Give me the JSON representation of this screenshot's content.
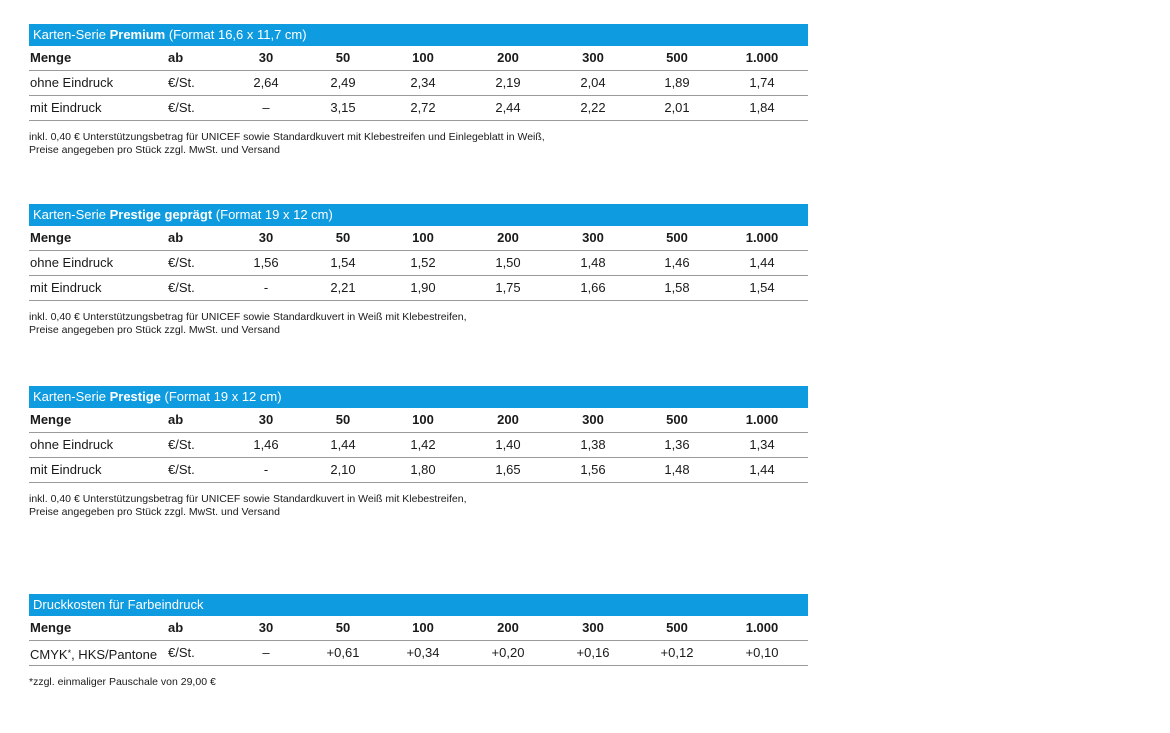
{
  "colors": {
    "accent": "#0f9be0",
    "rule": "#9a9a9a"
  },
  "tables": [
    {
      "title_prefix": "Karten-Serie ",
      "title_bold": "Premium",
      "title_suffix": " (Format 16,6 x 11,7 cm)",
      "header": [
        "Menge",
        "ab",
        "30",
        "50",
        "100",
        "200",
        "300",
        "500",
        "1.000"
      ],
      "rows": [
        [
          "ohne Eindruck",
          "€/St.",
          "2,64",
          "2,49",
          "2,34",
          "2,19",
          "2,04",
          "1,89",
          "1,74"
        ],
        [
          "mit Eindruck",
          "€/St.",
          "–",
          "3,15",
          "2,72",
          "2,44",
          "2,22",
          "2,01",
          "1,84"
        ]
      ],
      "note_lines": [
        "inkl. 0,40 € Unterstützungsbetrag für UNICEF sowie Standardkuvert mit Klebestreifen und Einlegeblatt in Weiß,",
        "Preise angegeben pro Stück zzgl. MwSt. und Versand"
      ]
    },
    {
      "title_prefix": "Karten-Serie ",
      "title_bold": "Prestige geprägt",
      "title_suffix": " (Format 19 x 12 cm)",
      "header": [
        "Menge",
        "ab",
        "30",
        "50",
        "100",
        "200",
        "300",
        "500",
        "1.000"
      ],
      "rows": [
        [
          "ohne Eindruck",
          "€/St.",
          "1,56",
          "1,54",
          "1,52",
          "1,50",
          "1,48",
          "1,46",
          "1,44"
        ],
        [
          "mit Eindruck",
          "€/St.",
          "-",
          "2,21",
          "1,90",
          "1,75",
          "1,66",
          "1,58",
          "1,54"
        ]
      ],
      "note_lines": [
        "inkl. 0,40 € Unterstützungsbetrag für UNICEF sowie Standardkuvert in Weiß mit Klebestreifen,",
        "Preise angegeben pro Stück zzgl. MwSt. und Versand"
      ]
    },
    {
      "title_prefix": "Karten-Serie ",
      "title_bold": "Prestige",
      "title_suffix": " (Format 19 x 12 cm)",
      "header": [
        "Menge",
        "ab",
        "30",
        "50",
        "100",
        "200",
        "300",
        "500",
        "1.000"
      ],
      "rows": [
        [
          "ohne Eindruck",
          "€/St.",
          "1,46",
          "1,44",
          "1,42",
          "1,40",
          "1,38",
          "1,36",
          "1,34"
        ],
        [
          "mit Eindruck",
          "€/St.",
          "-",
          "2,10",
          "1,80",
          "1,65",
          "1,56",
          "1,48",
          "1,44"
        ]
      ],
      "note_lines": [
        "inkl. 0,40 € Unterstützungsbetrag für UNICEF sowie Standardkuvert in Weiß mit Klebestreifen,",
        "Preise angegeben pro Stück zzgl. MwSt. und Versand"
      ]
    },
    {
      "title_prefix": "Druckkosten für Farbeindruck",
      "title_bold": "",
      "title_suffix": "",
      "header": [
        "Menge",
        "ab",
        "30",
        "50",
        "100",
        "200",
        "300",
        "500",
        "1.000"
      ],
      "rows": [
        [
          "CMYK",
          "€/St.",
          "–",
          "+0,61",
          "+0,34",
          "+0,20",
          "+0,16",
          "+0,12",
          "+0,10"
        ]
      ],
      "row0_star": "*",
      "row0_suffix": ", HKS/Pantone",
      "note_star": "*",
      "note_lines": [
        "zzgl. einmaliger Pauschale von 29,00 €"
      ]
    }
  ]
}
